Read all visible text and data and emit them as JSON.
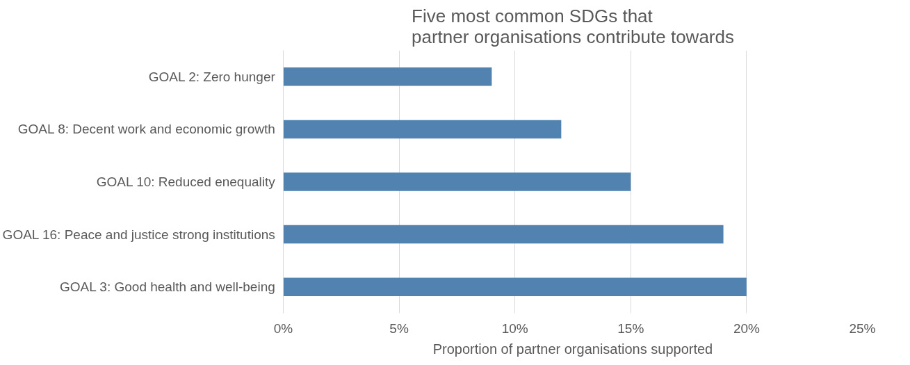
{
  "chart_data": {
    "type": "bar",
    "orientation": "horizontal",
    "title": "Five most common SDGs that partner organisations contribute towards",
    "xlabel": "Proportion of partner organisations supported",
    "categories": [
      "GOAL 2: Zero hunger",
      "GOAL 8: Decent work and economic growth",
      "GOAL 10: Reduced enequality",
      "GOAL 16: Peace and justice strong institutions",
      "GOAL 3: Good health and well-being"
    ],
    "values": [
      9,
      12,
      15,
      19,
      20
    ],
    "color": "#5182b0",
    "xlim": [
      0,
      25
    ],
    "xticks": [
      {
        "value": 0,
        "label": "0%"
      },
      {
        "value": 5,
        "label": "5%"
      },
      {
        "value": 10,
        "label": "10%"
      },
      {
        "value": 15,
        "label": "15%"
      },
      {
        "value": 20,
        "label": "20%"
      },
      {
        "value": 25,
        "label": "25%"
      }
    ],
    "grid": "x"
  }
}
